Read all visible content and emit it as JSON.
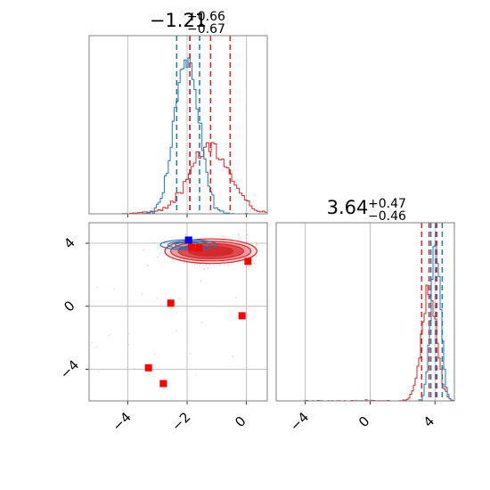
{
  "chart_data": {
    "type": "corner",
    "parameters": [
      {
        "title": {
          "median": "−1.21",
          "plus": "+0.66",
          "minus": "−0.67"
        },
        "range": [
          -5.3,
          0.7
        ],
        "ticks": [
          -4,
          -2,
          0
        ],
        "tick_labels": [
          "−4",
          "−2",
          "0"
        ],
        "blue_quantiles": [
          -2.35,
          -1.9,
          -1.58
        ],
        "red_quantiles": [
          -1.91,
          -1.21,
          -0.55
        ]
      },
      {
        "title": {
          "median": "3.64",
          "plus": "+0.47",
          "minus": "−0.46"
        },
        "range": [
          -5.8,
          5.2
        ],
        "ticks": [
          -4,
          0,
          4
        ],
        "tick_labels": [
          "−4",
          "0",
          "4"
        ],
        "blue_quantiles": [
          3.75,
          4.05,
          4.45
        ],
        "red_quantiles": [
          3.18,
          3.64,
          4.11
        ]
      }
    ],
    "joint": {
      "x_range": [
        -5.3,
        0.7
      ],
      "y_range": [
        -6.0,
        5.3
      ],
      "x_ticks": [
        -4,
        -2,
        0
      ],
      "y_ticks": [
        -4,
        0,
        4
      ],
      "y_tick_labels": [
        "−4",
        "0",
        "4"
      ],
      "red_markers": [
        {
          "x": -2.55,
          "y": 0.2
        },
        {
          "x": -0.15,
          "y": -0.6
        },
        {
          "x": -3.3,
          "y": -3.9
        },
        {
          "x": -2.8,
          "y": -4.9
        },
        {
          "x": 0.05,
          "y": 2.85
        },
        {
          "x": -1.95,
          "y": 4.2
        },
        {
          "x": -1.6,
          "y": 3.7
        },
        {
          "x": -1.85,
          "y": 3.75
        }
      ],
      "blue_markers": [
        {
          "x": -1.95,
          "y": 4.2
        }
      ],
      "red_density_center": {
        "x": -1.2,
        "y": 3.5
      },
      "blue_density_center": {
        "x": -1.95,
        "y": 3.9
      }
    },
    "colors": {
      "blue": "#1f77b4",
      "red": "#d62728",
      "marker_red": "#ff0000",
      "marker_blue": "#0000ff",
      "grid": "#b0b0b0",
      "frame": "#808080"
    }
  }
}
